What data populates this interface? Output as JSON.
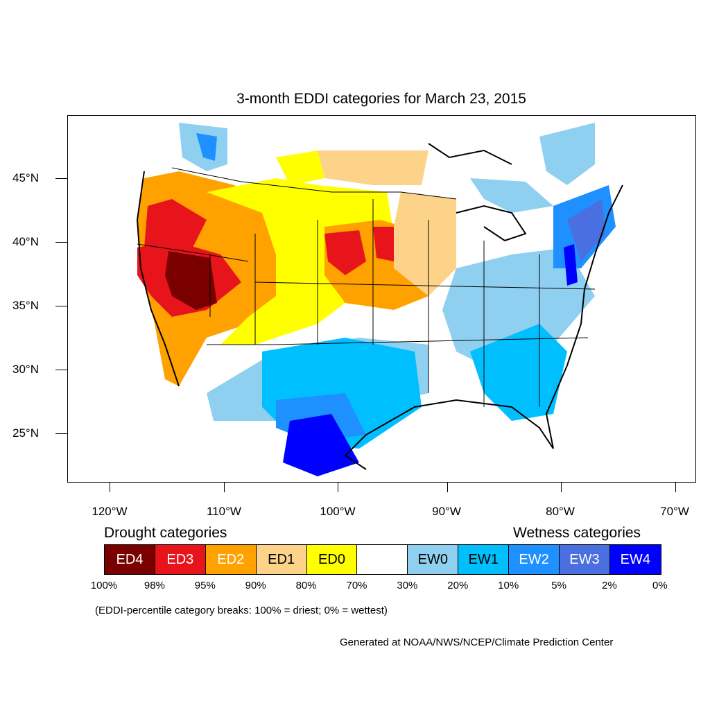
{
  "title": "3-month EDDI categories for March 23, 2015",
  "lat_labels": [
    "45°N",
    "40°N",
    "35°N",
    "30°N",
    "25°N"
  ],
  "lon_labels": [
    "120°W",
    "110°W",
    "100°W",
    "90°W",
    "80°W",
    "70°W"
  ],
  "legend": {
    "drought_heading": "Drought categories",
    "wetness_heading": "Wetness categories",
    "categories": [
      {
        "label": "ED4",
        "color": "#7a0000",
        "text_color": "#ffffff"
      },
      {
        "label": "ED3",
        "color": "#e8141c",
        "text_color": "#ffffff"
      },
      {
        "label": "ED2",
        "color": "#ffa200",
        "text_color": "#ffffff"
      },
      {
        "label": "ED1",
        "color": "#fdd38a",
        "text_color": "#000000"
      },
      {
        "label": "ED0",
        "color": "#ffff00",
        "text_color": "#000000"
      },
      {
        "label": "",
        "color": "#ffffff",
        "text_color": "#000000"
      },
      {
        "label": "EW0",
        "color": "#8fcff0",
        "text_color": "#000000"
      },
      {
        "label": "EW1",
        "color": "#00bfff",
        "text_color": "#000000"
      },
      {
        "label": "EW2",
        "color": "#1e90ff",
        "text_color": "#ffffff"
      },
      {
        "label": "EW3",
        "color": "#4a6fe0",
        "text_color": "#ffffff"
      },
      {
        "label": "EW4",
        "color": "#0000ff",
        "text_color": "#ffffff"
      }
    ],
    "percent_breaks": [
      "100%",
      "98%",
      "95%",
      "90%",
      "80%",
      "70%",
      "30%",
      "20%",
      "10%",
      "5%",
      "2%",
      "0%"
    ]
  },
  "note": "(EDDI-percentile category breaks: 100% = driest; 0% = wettest)",
  "credit": "Generated at NOAA/NWS/NCEP/Climate Prediction Center"
}
